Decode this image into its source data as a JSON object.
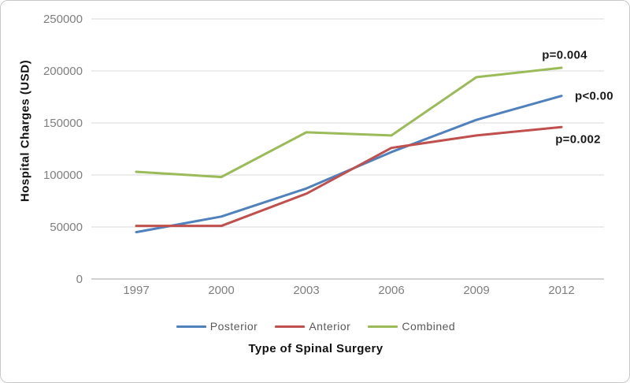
{
  "chart_data": {
    "type": "line",
    "title": "",
    "xlabel": "Type of Spinal Surgery",
    "ylabel": "Hospital Charges  (USD)",
    "categories": [
      "1997",
      "2000",
      "2003",
      "2006",
      "2009",
      "2012"
    ],
    "series": [
      {
        "name": "Posterior",
        "color": "#4F81BD",
        "values": [
          45000,
          60000,
          87000,
          122000,
          153000,
          176000
        ]
      },
      {
        "name": "Anterior",
        "color": "#C0504D",
        "values": [
          51000,
          51000,
          82000,
          126000,
          138000,
          146000
        ]
      },
      {
        "name": "Combined",
        "color": "#9BBB59",
        "values": [
          103000,
          98000,
          141000,
          138000,
          194000,
          203000
        ]
      }
    ],
    "y_ticks": [
      0,
      50000,
      100000,
      150000,
      200000,
      250000
    ],
    "ylim": [
      0,
      250000
    ],
    "grid": "horizontal",
    "legend_position": "bottom",
    "annotations": [
      {
        "text": "p=0.004",
        "series": "Combined",
        "anchor_category": "2012",
        "anchor_value": 215000,
        "align": "center",
        "dx": 4
      },
      {
        "text": "p<0.00",
        "series": "Posterior",
        "anchor_category": "2012",
        "anchor_value": 176000,
        "align": "left",
        "dx": 17
      },
      {
        "text": "p=0.002",
        "series": "Anterior",
        "anchor_category": "2012",
        "anchor_value": 134000,
        "align": "center",
        "dx": 21
      }
    ]
  },
  "colors": {
    "grid": "#D9D9D9",
    "axis_line": "#A6A6A6",
    "tick_text": "#7F7F7F",
    "legend_text": "#595959",
    "annotation_text": "#1A1A1A",
    "border": "#C9C9C9",
    "background": "#FFFFFF"
  }
}
